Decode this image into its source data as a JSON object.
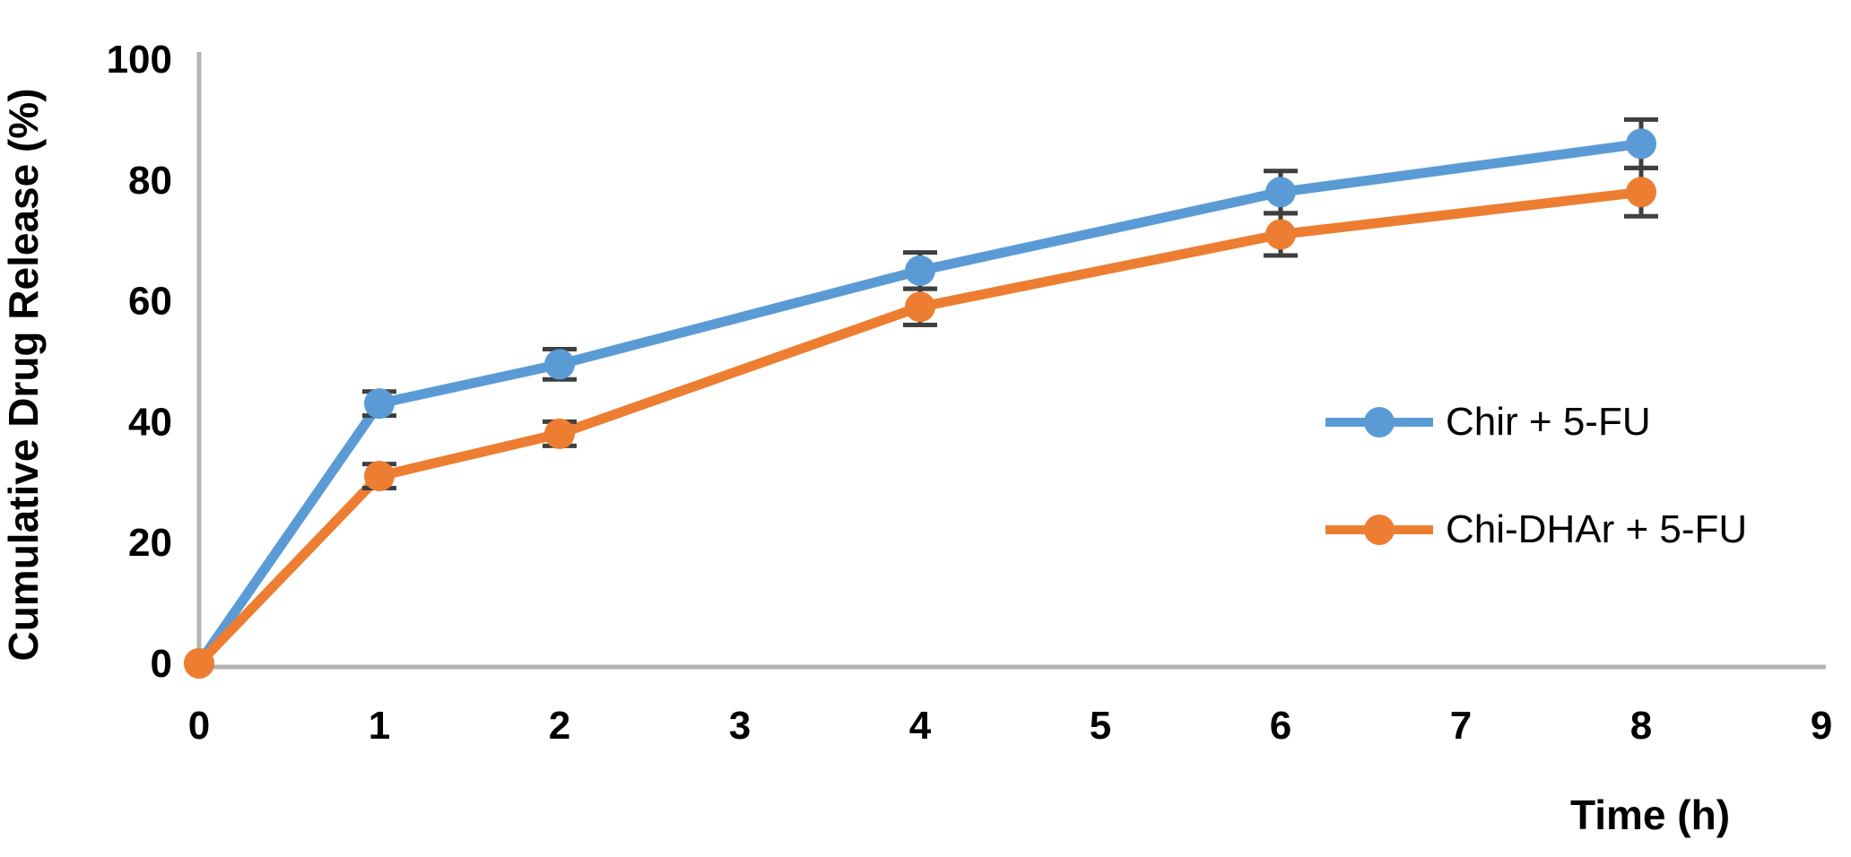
{
  "chart_data": {
    "type": "line",
    "xlabel": "Time (h)",
    "ylabel": "Cumulative Drug Release (%)",
    "x": [
      0,
      1,
      2,
      4,
      6,
      8
    ],
    "x_ticks": [
      0,
      1,
      2,
      3,
      4,
      5,
      6,
      7,
      8,
      9
    ],
    "y_ticks": [
      0,
      20,
      40,
      60,
      80,
      100
    ],
    "xlim": [
      0,
      9
    ],
    "ylim": [
      0,
      100
    ],
    "grid": false,
    "legend_position": "center-right",
    "axis_color": "#B3B3B3",
    "error_bar_color": "#3F3F3F",
    "series": [
      {
        "name": "Chir + 5-FU",
        "color": "#5B9BD5",
        "values": [
          0,
          43,
          49.5,
          65,
          78,
          86
        ],
        "errors": [
          0,
          2,
          2.5,
          3,
          3.5,
          4
        ]
      },
      {
        "name": "Chi-DHAr + 5-FU",
        "color": "#ED7D31",
        "values": [
          0,
          31,
          38,
          59,
          71,
          78
        ],
        "errors": [
          0,
          2,
          2,
          3,
          3.5,
          4
        ]
      }
    ]
  }
}
